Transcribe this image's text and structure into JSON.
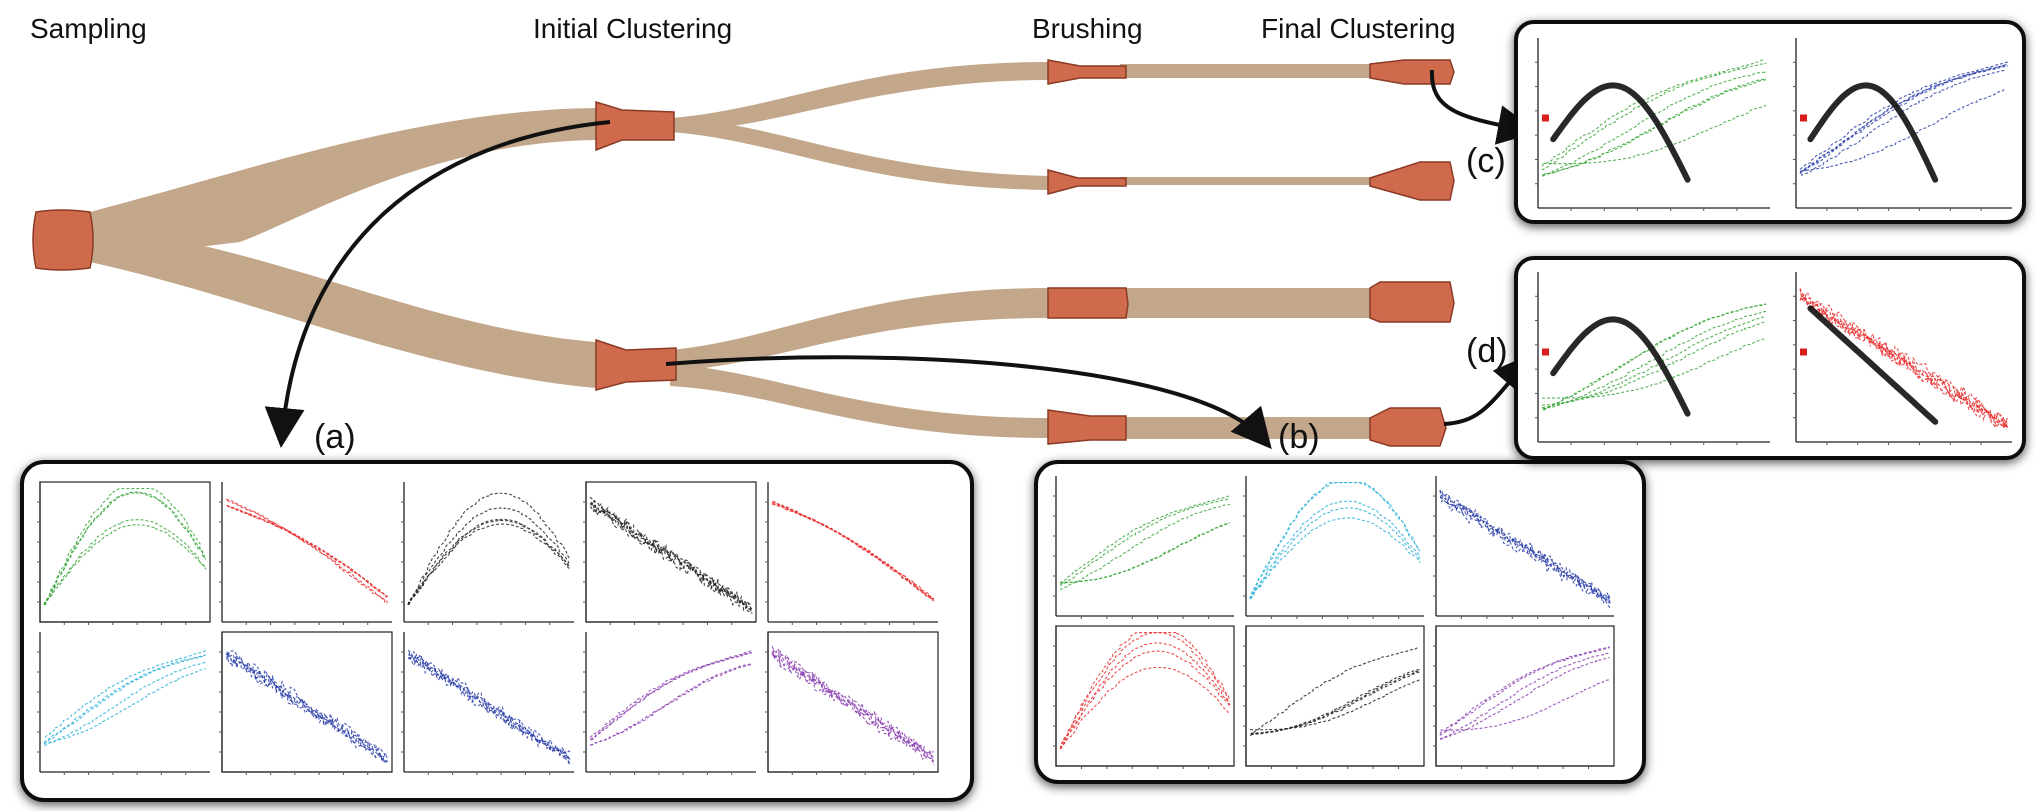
{
  "stages": {
    "sampling": "Sampling",
    "initial_clustering": "Initial Clustering",
    "brushing": "Brushing",
    "final_clustering": "Final Clustering"
  },
  "panels": {
    "a": "(a)",
    "b": "(b)",
    "c": "(c)",
    "d": "(d)"
  },
  "colors": {
    "flow": "#c2a78a",
    "node": "#cf6a4d",
    "node_edge": "#8a3a25",
    "cluster_colors": [
      "#3aa63a",
      "#e83030",
      "#222222",
      "#2bb0d8",
      "#2b3fa8",
      "#8a3fb0"
    ]
  }
}
